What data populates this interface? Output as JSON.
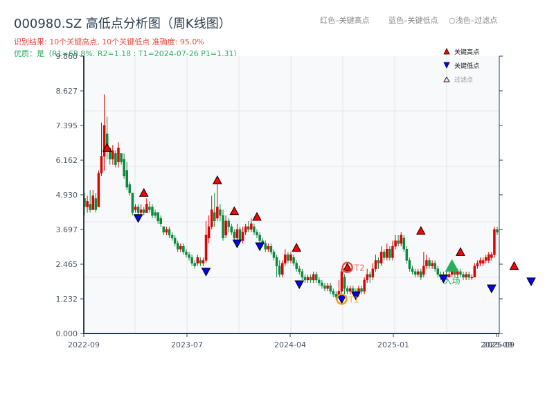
{
  "title": "000980.SZ 高低点分析图（周K线图）",
  "subtitle_result": "识别结果: 10个关键高点, 10个关键低点   准确度: 95.0%",
  "subtitle_quality": "优质：是（R1=68.8%, R2=1.18 ; T1=2024-07-26 P1=1.31）",
  "top_notes": {
    "red": "红色–关键高点",
    "blue": "蓝色–关键低点",
    "light": "○浅色–过滤点"
  },
  "legend": [
    {
      "label": "关键高点",
      "marker": "triangle-up",
      "color": "#ff0000"
    },
    {
      "label": "关键低点",
      "marker": "triangle-down",
      "color": "#0000ff"
    },
    {
      "label": "过滤点",
      "marker": "triangle-up-outline",
      "color": "#ffcccc"
    }
  ],
  "colors": {
    "up": "#e00000",
    "down": "#0a8a3a",
    "grid": "#e2e6ea",
    "plot_bg": "#f7f9fb",
    "axis": "#2c3e50",
    "t1_ring": "#f39c12",
    "t2_ring": "#e74c3c",
    "entry": "#27ae60"
  },
  "chart_data": {
    "type": "candlestick",
    "title": "000980.SZ 高低点分析图（周K线图）",
    "xlabel": "",
    "ylabel": "",
    "ylim": [
      0.0,
      9.86
    ],
    "yticks": [
      0.0,
      1.232,
      2.465,
      3.697,
      4.93,
      6.162,
      7.395,
      8.627,
      9.86
    ],
    "xticks": [
      {
        "label": "2022-09",
        "x": 121
      },
      {
        "label": "2023-07",
        "x": 270
      },
      {
        "label": "2024-04",
        "x": 419
      },
      {
        "label": "2025-01",
        "x": 568
      },
      {
        "label": "2025-09",
        "x": 717
      },
      {
        "label": "2025-09",
        "x": 720
      }
    ],
    "grid": true,
    "legend_position": "upper right",
    "candles": [
      [
        4.8,
        4.5,
        5.0,
        4.2
      ],
      [
        4.5,
        4.7,
        4.9,
        4.3
      ],
      [
        4.6,
        4.4,
        5.1,
        4.3
      ],
      [
        4.4,
        4.9,
        5.1,
        4.4
      ],
      [
        4.8,
        4.4,
        5.0,
        4.3
      ],
      [
        4.5,
        5.7,
        5.8,
        4.5
      ],
      [
        5.7,
        6.3,
        7.5,
        5.6
      ],
      [
        6.3,
        7.4,
        8.5,
        5.8
      ],
      [
        7.1,
        6.6,
        7.7,
        6.2
      ],
      [
        6.6,
        6.2,
        6.6,
        6.0
      ],
      [
        6.2,
        6.5,
        6.7,
        6.0
      ],
      [
        6.4,
        6.0,
        6.5,
        5.9
      ],
      [
        6.1,
        6.6,
        6.8,
        5.9
      ],
      [
        6.4,
        6.1,
        6.4,
        6.0
      ],
      [
        6.2,
        5.6,
        6.4,
        5.5
      ],
      [
        5.8,
        5.2,
        6.1,
        5.1
      ],
      [
        5.3,
        5.0,
        5.4,
        4.9
      ],
      [
        5.0,
        4.3,
        5.0,
        4.2
      ],
      [
        4.4,
        4.5,
        4.6,
        4.3
      ],
      [
        4.5,
        4.3,
        4.6,
        4.2
      ],
      [
        4.3,
        4.4,
        4.6,
        4.2
      ],
      [
        4.4,
        4.3,
        4.5,
        4.2
      ],
      [
        4.3,
        4.6,
        4.8,
        4.3
      ],
      [
        4.5,
        4.4,
        4.7,
        4.3
      ],
      [
        4.5,
        4.2,
        4.6,
        4.1
      ],
      [
        4.3,
        4.2,
        4.4,
        4.1
      ],
      [
        4.3,
        4.0,
        4.3,
        3.9
      ],
      [
        4.1,
        3.9,
        4.2,
        3.8
      ],
      [
        3.8,
        3.6,
        3.8,
        3.5
      ],
      [
        3.6,
        3.7,
        3.8,
        3.5
      ],
      [
        3.7,
        3.5,
        3.8,
        3.4
      ],
      [
        3.5,
        3.4,
        3.6,
        3.3
      ],
      [
        3.4,
        3.2,
        3.5,
        3.1
      ],
      [
        3.2,
        3.0,
        3.3,
        2.9
      ],
      [
        3.0,
        3.1,
        3.2,
        2.9
      ],
      [
        3.1,
        2.9,
        3.2,
        2.8
      ],
      [
        2.9,
        2.8,
        3.0,
        2.7
      ],
      [
        2.8,
        2.7,
        2.9,
        2.6
      ],
      [
        2.7,
        2.5,
        2.8,
        2.4
      ],
      [
        2.5,
        2.4,
        2.6,
        2.3
      ],
      [
        2.5,
        2.7,
        2.8,
        2.4
      ],
      [
        2.6,
        2.5,
        2.7,
        2.4
      ],
      [
        2.5,
        2.6,
        2.7,
        2.4
      ],
      [
        2.6,
        3.5,
        4.0,
        2.5
      ],
      [
        3.4,
        3.8,
        4.2,
        3.2
      ],
      [
        3.8,
        4.4,
        4.9,
        3.7
      ],
      [
        4.3,
        4.0,
        5.0,
        3.8
      ],
      [
        4.1,
        4.5,
        5.3,
        4.0
      ],
      [
        4.4,
        4.2,
        4.6,
        4.0
      ],
      [
        4.2,
        3.4,
        4.4,
        3.3
      ],
      [
        3.5,
        4.0,
        4.2,
        3.4
      ],
      [
        4.0,
        3.8,
        4.1,
        3.6
      ],
      [
        3.8,
        3.6,
        3.9,
        3.5
      ],
      [
        3.6,
        3.4,
        3.7,
        3.3
      ],
      [
        3.4,
        3.7,
        3.9,
        3.3
      ],
      [
        3.7,
        3.3,
        3.8,
        3.2
      ],
      [
        3.3,
        3.6,
        3.8,
        3.2
      ],
      [
        3.6,
        3.8,
        3.9,
        3.5
      ],
      [
        3.8,
        3.7,
        4.0,
        3.6
      ],
      [
        3.7,
        3.9,
        4.1,
        3.6
      ],
      [
        3.8,
        3.6,
        3.9,
        3.5
      ],
      [
        3.6,
        3.5,
        3.7,
        3.4
      ],
      [
        3.5,
        3.3,
        3.6,
        3.2
      ],
      [
        3.3,
        3.2,
        3.4,
        3.1
      ],
      [
        3.2,
        3.0,
        3.3,
        2.9
      ],
      [
        3.0,
        3.1,
        3.2,
        2.9
      ],
      [
        3.1,
        2.9,
        3.2,
        2.8
      ],
      [
        2.9,
        2.7,
        3.0,
        2.6
      ],
      [
        2.7,
        2.4,
        2.8,
        2.0
      ],
      [
        2.4,
        2.1,
        2.6,
        2.0
      ],
      [
        2.1,
        2.5,
        2.6,
        2.0
      ],
      [
        2.5,
        2.8,
        3.0,
        2.4
      ],
      [
        2.8,
        2.6,
        2.9,
        2.5
      ],
      [
        2.6,
        2.8,
        2.9,
        2.5
      ],
      [
        2.7,
        2.5,
        2.8,
        2.4
      ],
      [
        2.5,
        2.3,
        2.6,
        2.2
      ],
      [
        2.3,
        2.2,
        2.4,
        2.1
      ],
      [
        2.2,
        2.0,
        2.3,
        1.9
      ],
      [
        2.0,
        1.9,
        2.1,
        1.8
      ],
      [
        1.9,
        2.0,
        2.1,
        1.8
      ],
      [
        2.0,
        1.9,
        2.1,
        1.8
      ],
      [
        1.9,
        2.1,
        2.2,
        1.8
      ],
      [
        2.1,
        1.9,
        2.2,
        1.8
      ],
      [
        1.9,
        1.8,
        2.0,
        1.7
      ],
      [
        1.8,
        1.7,
        1.9,
        1.6
      ],
      [
        1.7,
        1.6,
        1.8,
        1.5
      ],
      [
        1.6,
        1.7,
        1.8,
        1.5
      ],
      [
        1.7,
        1.5,
        1.8,
        1.4
      ],
      [
        1.5,
        1.4,
        1.6,
        1.3
      ],
      [
        1.4,
        1.3,
        1.5,
        1.2
      ],
      [
        1.3,
        1.5,
        1.9,
        1.3
      ],
      [
        1.5,
        2.2,
        2.3,
        1.4
      ],
      [
        2.0,
        1.6,
        2.1,
        1.4
      ],
      [
        1.6,
        1.5,
        1.7,
        1.4
      ],
      [
        1.5,
        1.6,
        1.7,
        1.4
      ],
      [
        1.6,
        1.5,
        1.7,
        1.4
      ],
      [
        1.5,
        1.4,
        1.6,
        1.3
      ],
      [
        1.4,
        1.6,
        1.7,
        1.3
      ],
      [
        1.6,
        1.5,
        1.7,
        1.4
      ],
      [
        1.5,
        1.9,
        2.0,
        1.4
      ],
      [
        1.9,
        2.1,
        2.3,
        1.8
      ],
      [
        2.1,
        2.0,
        2.2,
        1.8
      ],
      [
        2.0,
        2.3,
        2.5,
        1.9
      ],
      [
        2.3,
        2.6,
        2.8,
        2.2
      ],
      [
        2.6,
        2.5,
        2.7,
        2.3
      ],
      [
        2.5,
        2.9,
        3.1,
        2.4
      ],
      [
        2.9,
        2.7,
        3.0,
        2.6
      ],
      [
        2.7,
        3.0,
        3.2,
        2.6
      ],
      [
        3.0,
        2.7,
        3.1,
        2.6
      ],
      [
        2.7,
        3.1,
        3.3,
        2.6
      ],
      [
        3.1,
        3.3,
        3.5,
        3.0
      ],
      [
        3.3,
        3.2,
        3.5,
        3.1
      ],
      [
        3.2,
        3.5,
        3.6,
        3.1
      ],
      [
        3.4,
        3.0,
        3.5,
        2.9
      ],
      [
        3.0,
        2.6,
        3.1,
        2.5
      ],
      [
        2.6,
        2.3,
        2.7,
        2.2
      ],
      [
        2.3,
        2.2,
        2.4,
        2.1
      ],
      [
        2.2,
        2.1,
        2.3,
        2.0
      ],
      [
        2.1,
        2.2,
        2.3,
        2.0
      ],
      [
        2.2,
        2.0,
        2.3,
        1.9
      ],
      [
        2.1,
        2.4,
        2.9,
        2.0
      ],
      [
        2.4,
        2.6,
        2.8,
        2.3
      ],
      [
        2.6,
        2.4,
        2.7,
        2.3
      ],
      [
        2.4,
        2.5,
        2.6,
        2.3
      ],
      [
        2.5,
        2.3,
        2.6,
        2.2
      ],
      [
        2.3,
        2.1,
        2.4,
        2.0
      ],
      [
        2.1,
        2.0,
        2.2,
        1.9
      ],
      [
        2.0,
        2.1,
        2.2,
        1.9
      ],
      [
        2.1,
        2.0,
        2.2,
        1.9
      ],
      [
        2.0,
        2.1,
        2.2,
        2.0
      ],
      [
        2.1,
        2.2,
        2.3,
        2.0
      ],
      [
        2.2,
        2.1,
        2.3,
        2.0
      ],
      [
        2.1,
        2.2,
        2.3,
        2.0
      ],
      [
        2.2,
        2.1,
        2.3,
        2.0
      ],
      [
        2.1,
        2.0,
        2.2,
        1.9
      ],
      [
        2.0,
        2.1,
        2.2,
        1.9
      ],
      [
        2.1,
        2.0,
        2.2,
        1.9
      ],
      [
        2.0,
        2.0,
        2.1,
        1.9
      ],
      [
        2.0,
        2.4,
        2.5,
        2.0
      ],
      [
        2.4,
        2.5,
        2.6,
        2.3
      ],
      [
        2.5,
        2.6,
        2.7,
        2.4
      ],
      [
        2.5,
        2.6,
        2.7,
        2.4
      ],
      [
        2.6,
        2.7,
        2.8,
        2.5
      ],
      [
        2.6,
        2.8,
        2.9,
        2.5
      ],
      [
        2.7,
        2.8,
        2.9,
        2.6
      ],
      [
        2.8,
        3.7,
        3.8,
        2.7
      ],
      [
        3.7,
        3.6,
        3.8,
        3.5
      ]
    ],
    "key_highs": [
      {
        "index": 8,
        "price": 6.5
      },
      {
        "index": 21,
        "price": 4.9
      },
      {
        "index": 47,
        "price": 5.35
      },
      {
        "index": 53,
        "price": 4.25
      },
      {
        "index": 61,
        "price": 4.05
      },
      {
        "index": 75,
        "price": 2.95
      },
      {
        "index": 93,
        "price": 2.25
      },
      {
        "index": 119,
        "price": 3.55
      },
      {
        "index": 133,
        "price": 2.8
      },
      {
        "index": 152,
        "price": 2.3
      }
    ],
    "key_lows": [
      {
        "index": 19,
        "price": 4.2
      },
      {
        "index": 43,
        "price": 2.3
      },
      {
        "index": 54,
        "price": 3.3
      },
      {
        "index": 62,
        "price": 3.2
      },
      {
        "index": 76,
        "price": 1.85
      },
      {
        "index": 91,
        "price": 1.32
      },
      {
        "index": 96,
        "price": 1.45
      },
      {
        "index": 127,
        "price": 2.05
      },
      {
        "index": 144,
        "price": 1.7
      },
      {
        "index": 158,
        "price": 1.95
      }
    ],
    "annotations": [
      {
        "label": "T1",
        "index": 91,
        "price": 1.32,
        "ring_color": "#f39c12"
      },
      {
        "label": "T2",
        "index": 93,
        "price": 2.25,
        "ring_color": "#e74c3c"
      },
      {
        "label": "入场",
        "index": 130,
        "price": 2.3,
        "color": "#27ae60"
      }
    ]
  }
}
